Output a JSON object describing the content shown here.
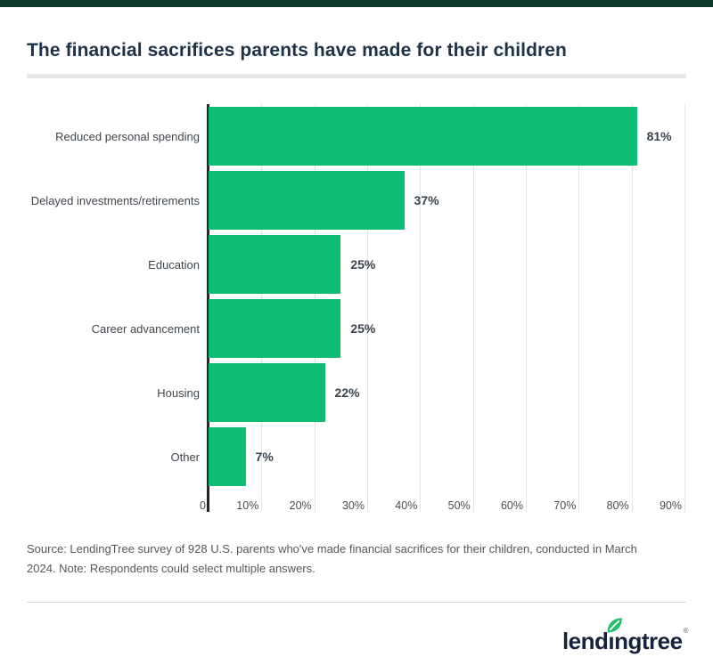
{
  "header": {
    "accent_color": "#0e3a2c",
    "title": "The financial sacrifices parents have made for their children"
  },
  "chart_data": {
    "type": "bar",
    "orientation": "horizontal",
    "title": "The financial sacrifices parents have made for their children",
    "categories": [
      "Reduced personal spending",
      "Delayed investments/retirements",
      "Education",
      "Career advancement",
      "Housing",
      "Other"
    ],
    "values": [
      81,
      37,
      25,
      25,
      22,
      7
    ],
    "value_labels": [
      "81%",
      "37%",
      "25%",
      "25%",
      "22%",
      "7%"
    ],
    "x_ticks": [
      "0",
      "10%",
      "20%",
      "30%",
      "40%",
      "50%",
      "60%",
      "70%",
      "80%",
      "90%"
    ],
    "xlim": [
      0,
      90
    ],
    "grid": true,
    "gridline_color": "#e4e4e4",
    "axis_color": "#262626",
    "bar_color": "#10bd74",
    "legend_position": "none"
  },
  "source_note": "Source: LendingTree survey of 928 U.S. parents who've made financial sacrifices for their children, conducted in March 2024. Note: Respondents could select multiple answers.",
  "footer": {
    "logo_text": "lendingtree",
    "logo_parts": [
      "lend",
      "ı",
      "ngtree"
    ],
    "registered_mark": "®",
    "logo_color": "#17233d",
    "leaf_color": "#21c06e"
  }
}
